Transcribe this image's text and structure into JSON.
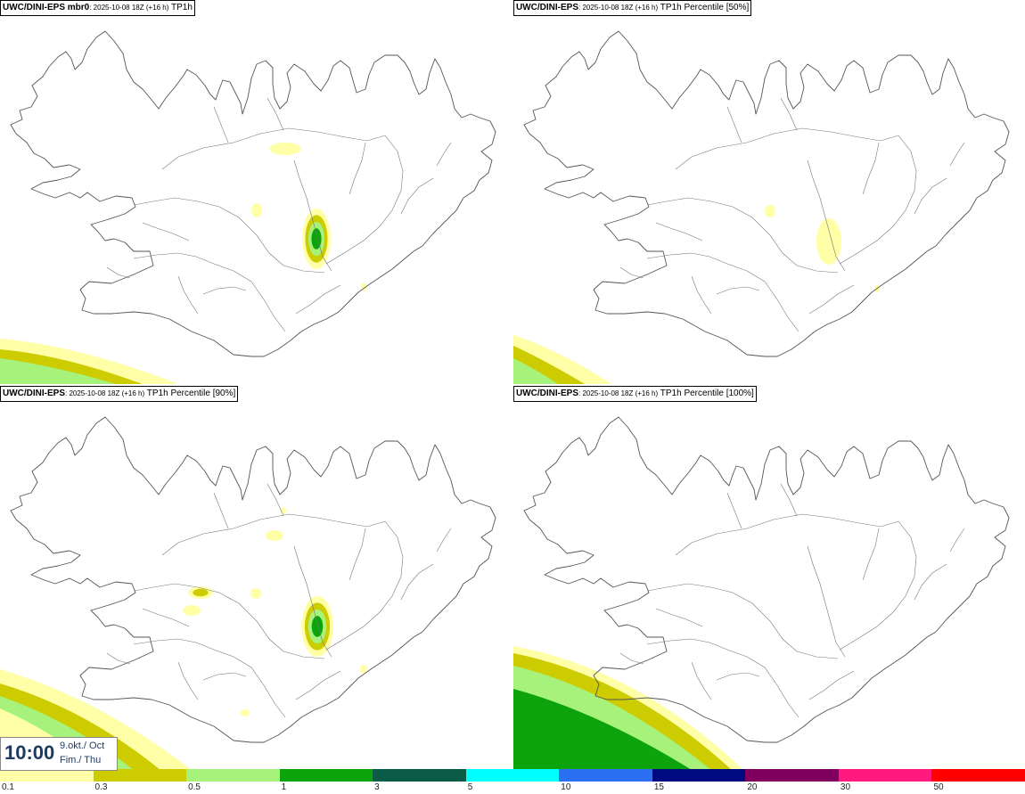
{
  "panels": [
    {
      "title_bold": "UWC/DINI-EPS mbr0",
      "title_small": ": 2025-10-08 18Z (+16 h)",
      "title_var": " TP1h"
    },
    {
      "title_bold": "UWC/DINI-EPS",
      "title_small": ": 2025-10-08 18Z (+16 h)",
      "title_var": " TP1h Percentile [50%]"
    },
    {
      "title_bold": "UWC/DINI-EPS",
      "title_small": ": 2025-10-08 18Z (+16 h)",
      "title_var": " TP1h Percentile [90%]"
    },
    {
      "title_bold": "UWC/DINI-EPS",
      "title_small": ": 2025-10-08 18Z (+16 h)",
      "title_var": " TP1h Percentile [100%]"
    }
  ],
  "time": {
    "hour": "10:00",
    "date": "9.okt./ Oct",
    "weekday": "Fim./ Thu"
  },
  "colorbar": {
    "colors": [
      "#ffffa8",
      "#cccc00",
      "#a6f27a",
      "#0ca30c",
      "#0a5c46",
      "#00ffff",
      "#2b6ff2",
      "#000a80",
      "#800060",
      "#ff1a80",
      "#ff0000"
    ],
    "labels": [
      "0.1",
      "0.3",
      "0.5",
      "1",
      "3",
      "5",
      "10",
      "15",
      "20",
      "30",
      "50"
    ]
  }
}
